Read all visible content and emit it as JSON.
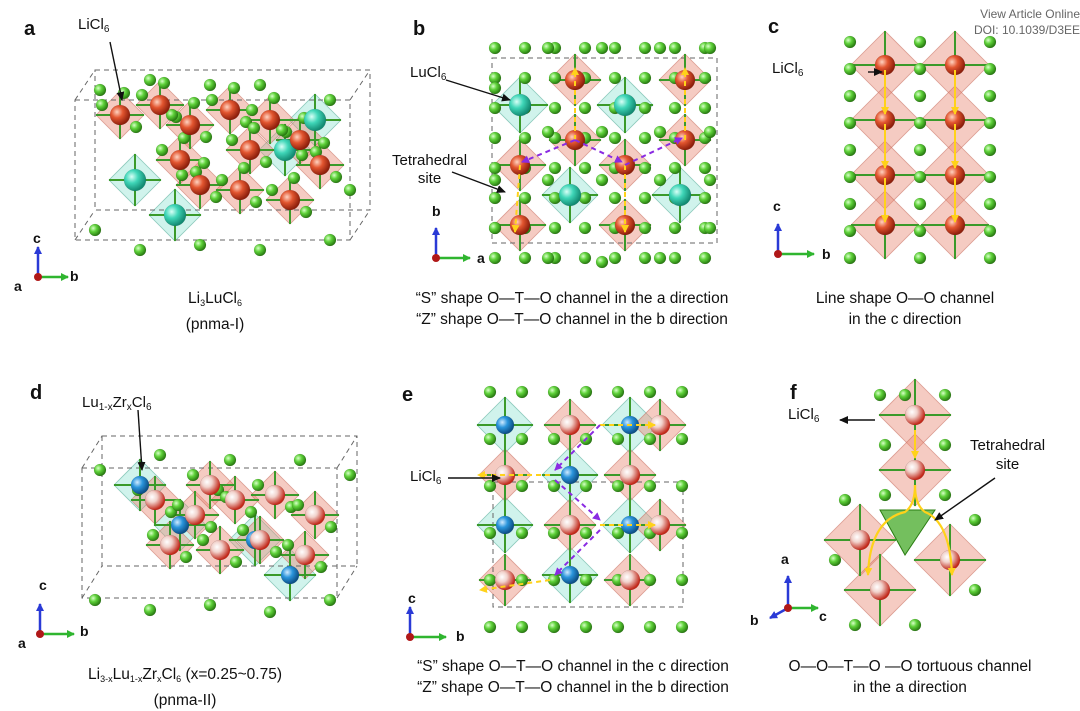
{
  "watermark": {
    "line1": "View Article Online",
    "line2": "DOI: 10.1039/D3EE"
  },
  "panels": {
    "a": {
      "label": "a",
      "annotation": "LiCl",
      "annotation_sub": "6",
      "caption_line1_part1": "Li",
      "caption_line1_sub1": "3",
      "caption_line1_part2": "LuCl",
      "caption_line1_sub2": "6",
      "caption_line2": "(pnma-I)",
      "axes": {
        "up": "c",
        "right": "b",
        "out": "a"
      }
    },
    "b": {
      "label": "b",
      "annotation1": "LuCl",
      "annotation1_sub": "6",
      "annotation2_line1": "Tetrahedral",
      "annotation2_line2": "site",
      "caption_line1": "“S” shape O—T—O channel in the a direction",
      "caption_line2": "“Z” shape O—T—O channel in the b direction",
      "axes": {
        "up": "b",
        "right": "a"
      }
    },
    "c": {
      "label": "c",
      "annotation": "LiCl",
      "annotation_sub": "6",
      "caption_line1": "Line shape O—O channel",
      "caption_line2": "in the c direction",
      "axes": {
        "up": "c",
        "right": "b"
      }
    },
    "d": {
      "label": "d",
      "annotation_part1": "Lu",
      "annotation_sub1": "1-x",
      "annotation_part2": "Zr",
      "annotation_sub2": "x",
      "annotation_part3": "Cl",
      "annotation_sub3": "6",
      "caption_line1_part1": "Li",
      "caption_line1_sub1": "3-x",
      "caption_line1_part2": "Lu",
      "caption_line1_sub2": "1-x",
      "caption_line1_part3": "Zr",
      "caption_line1_sub3": "x",
      "caption_line1_part4": "Cl",
      "caption_line1_sub4": "6",
      "caption_line1_part5": " (x=0.25~0.75)",
      "caption_line2": "(pnma-II)",
      "axes": {
        "up": "c",
        "right": "b",
        "out": "a"
      }
    },
    "e": {
      "label": "e",
      "annotation": "LiCl",
      "annotation_sub": "6",
      "caption_line1": "“S” shape O—T—O channel in the c direction",
      "caption_line2": "“Z” shape O—T—O channel in the b direction",
      "axes": {
        "up": "c",
        "right": "b"
      }
    },
    "f": {
      "label": "f",
      "annotation1": "LiCl",
      "annotation1_sub": "6",
      "annotation2_line1": "Tetrahedral",
      "annotation2_line2": "site",
      "caption_line1": "O—O—T—O —O tortuous channel",
      "caption_line2": "in the a direction",
      "axes": {
        "up": "a",
        "right": "c",
        "left": "b"
      }
    }
  },
  "colors": {
    "li_atom": "#d8452a",
    "cl_atom": "#5fcf3a",
    "lu_atom": "#3fd6b8",
    "zr_atom": "#2a8fd6",
    "li_octahedron": "#e8a090",
    "lu_octahedron": "#9fe6d6",
    "bond": "#3a9a2a",
    "channel_yellow": "#ffd21a",
    "channel_purple": "#8a2be2",
    "axis_up": "#2a3ad6",
    "axis_right": "#2fb52f",
    "axis_out": "#c81e1e"
  }
}
